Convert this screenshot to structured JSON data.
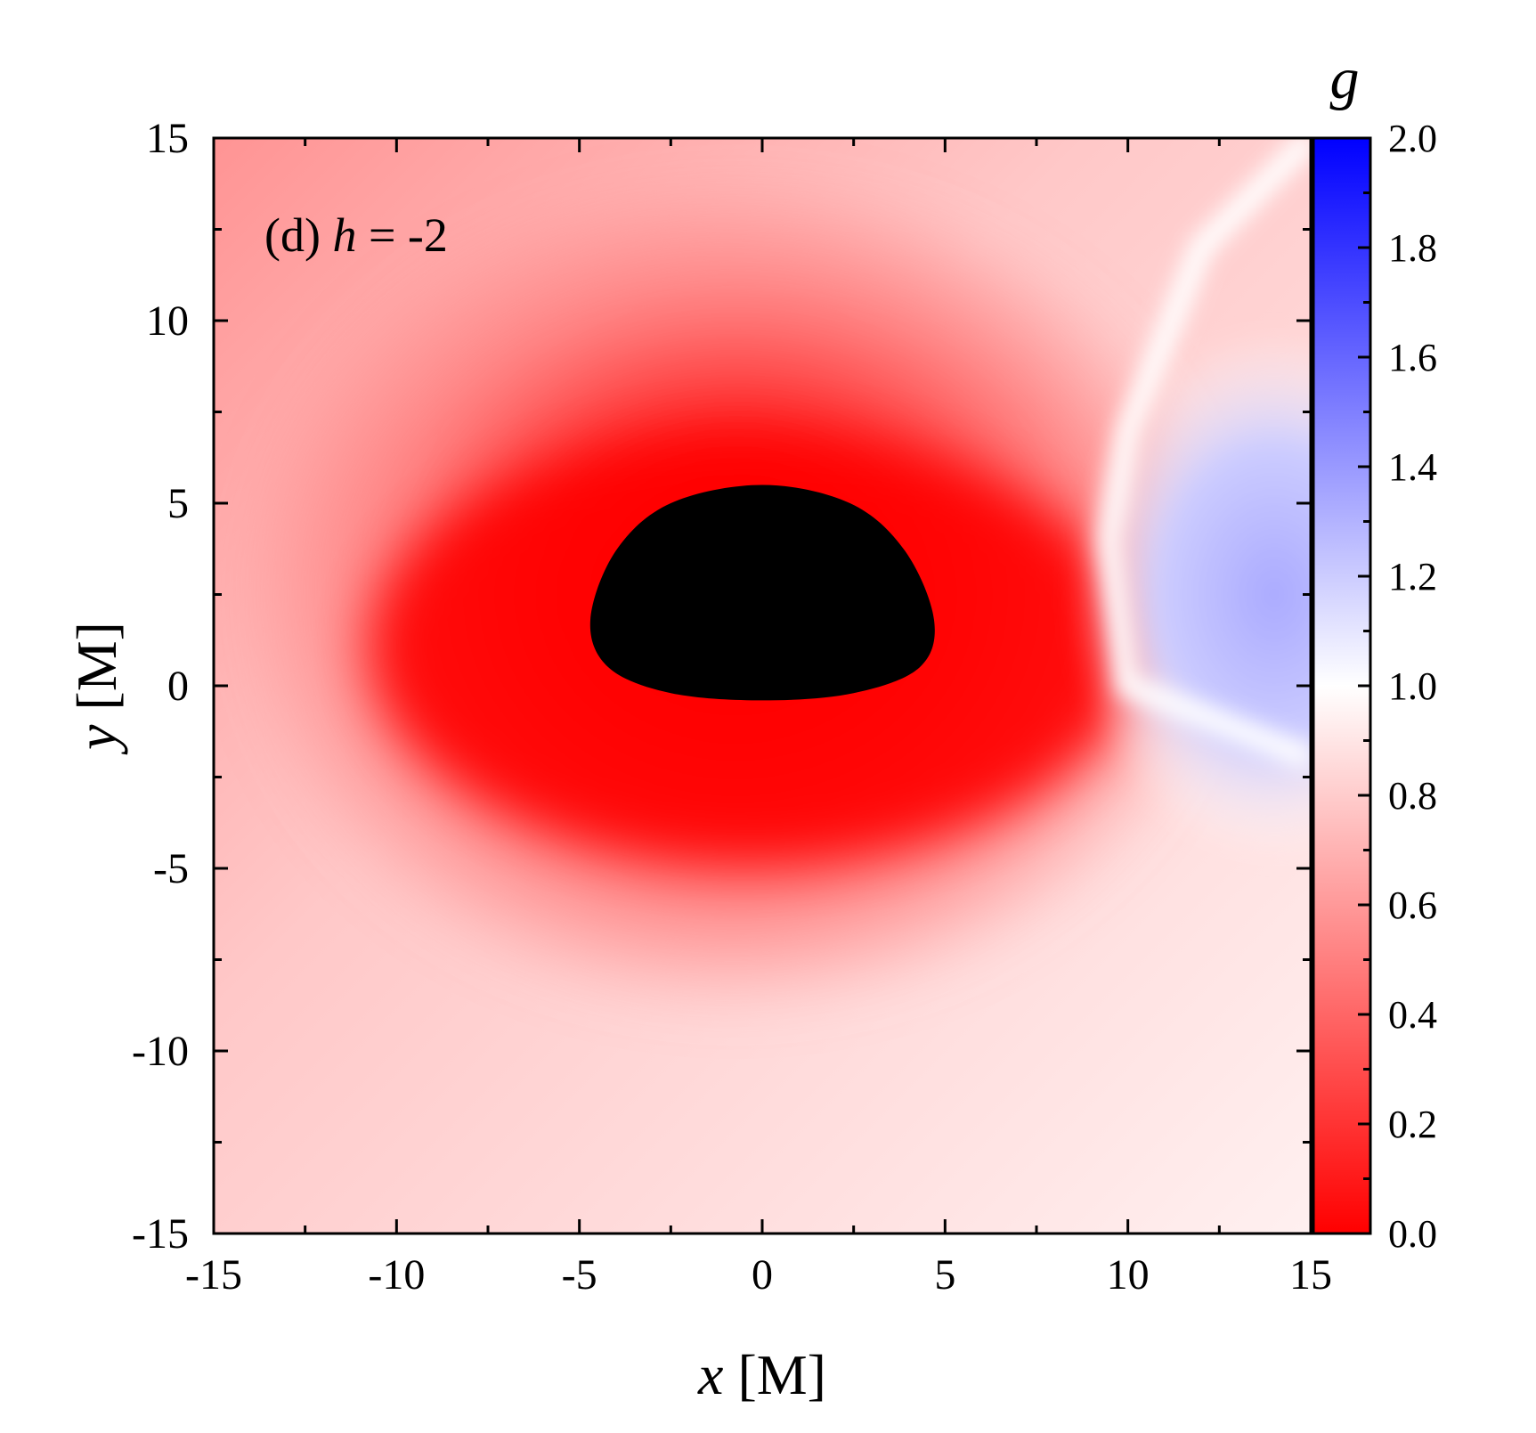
{
  "chart_data": {
    "type": "heatmap",
    "panel_label": {
      "prefix": "(d) ",
      "variable": "h",
      "suffix": " = -2"
    },
    "xlabel": {
      "variable": "x",
      "unit": " [M]"
    },
    "ylabel": {
      "variable": "y",
      "unit": " [M]"
    },
    "xlim": [
      -15,
      15
    ],
    "ylim": [
      -15,
      15
    ],
    "x_ticks": [
      -15,
      -10,
      -5,
      0,
      5,
      10,
      15
    ],
    "x_tick_labels": [
      "-15",
      "-10",
      "-5",
      "0",
      "5",
      "10",
      "15"
    ],
    "y_ticks": [
      15,
      10,
      5,
      0,
      -5,
      -10,
      -15
    ],
    "y_tick_labels": [
      "15",
      "10",
      "5",
      "0",
      "-5",
      "-10",
      "-15"
    ],
    "colorbar": {
      "label": "g",
      "range": [
        0.0,
        2.0
      ],
      "ticks": [
        2.0,
        1.8,
        1.6,
        1.4,
        1.2,
        1.0,
        0.8,
        0.6,
        0.4,
        0.2,
        0.0
      ],
      "tick_labels": [
        "2.0",
        "1.8",
        "1.6",
        "1.4",
        "1.2",
        "1.0",
        "0.8",
        "0.6",
        "0.4",
        "0.2",
        "0.0"
      ],
      "colors": {
        "min": "#ff0000",
        "mid": "#ffffff",
        "max": "#0000ff"
      }
    },
    "shadow": {
      "color": "#000000",
      "outline": [
        [
          0,
          5.5
        ],
        [
          -2.5,
          5.0
        ],
        [
          -4.0,
          3.7
        ],
        [
          -4.7,
          1.8
        ],
        [
          -4.2,
          0.5
        ],
        [
          -2.5,
          -0.2
        ],
        [
          0,
          -0.4
        ],
        [
          2.5,
          -0.2
        ],
        [
          4.3,
          0.5
        ],
        [
          4.7,
          1.8
        ],
        [
          3.9,
          3.7
        ],
        [
          2.4,
          5.0
        ]
      ]
    },
    "field_features": {
      "redshift_peak": {
        "x": 0,
        "y": 2,
        "g": 0.0
      },
      "blueshift_peak": {
        "x": 14,
        "y": 2.5,
        "g": 1.3
      },
      "g_equals_one_line": [
        [
          15,
          15
        ],
        [
          12,
          12
        ],
        [
          10,
          7
        ],
        [
          9.5,
          4
        ],
        [
          10,
          0
        ],
        [
          15,
          -2
        ]
      ]
    }
  }
}
